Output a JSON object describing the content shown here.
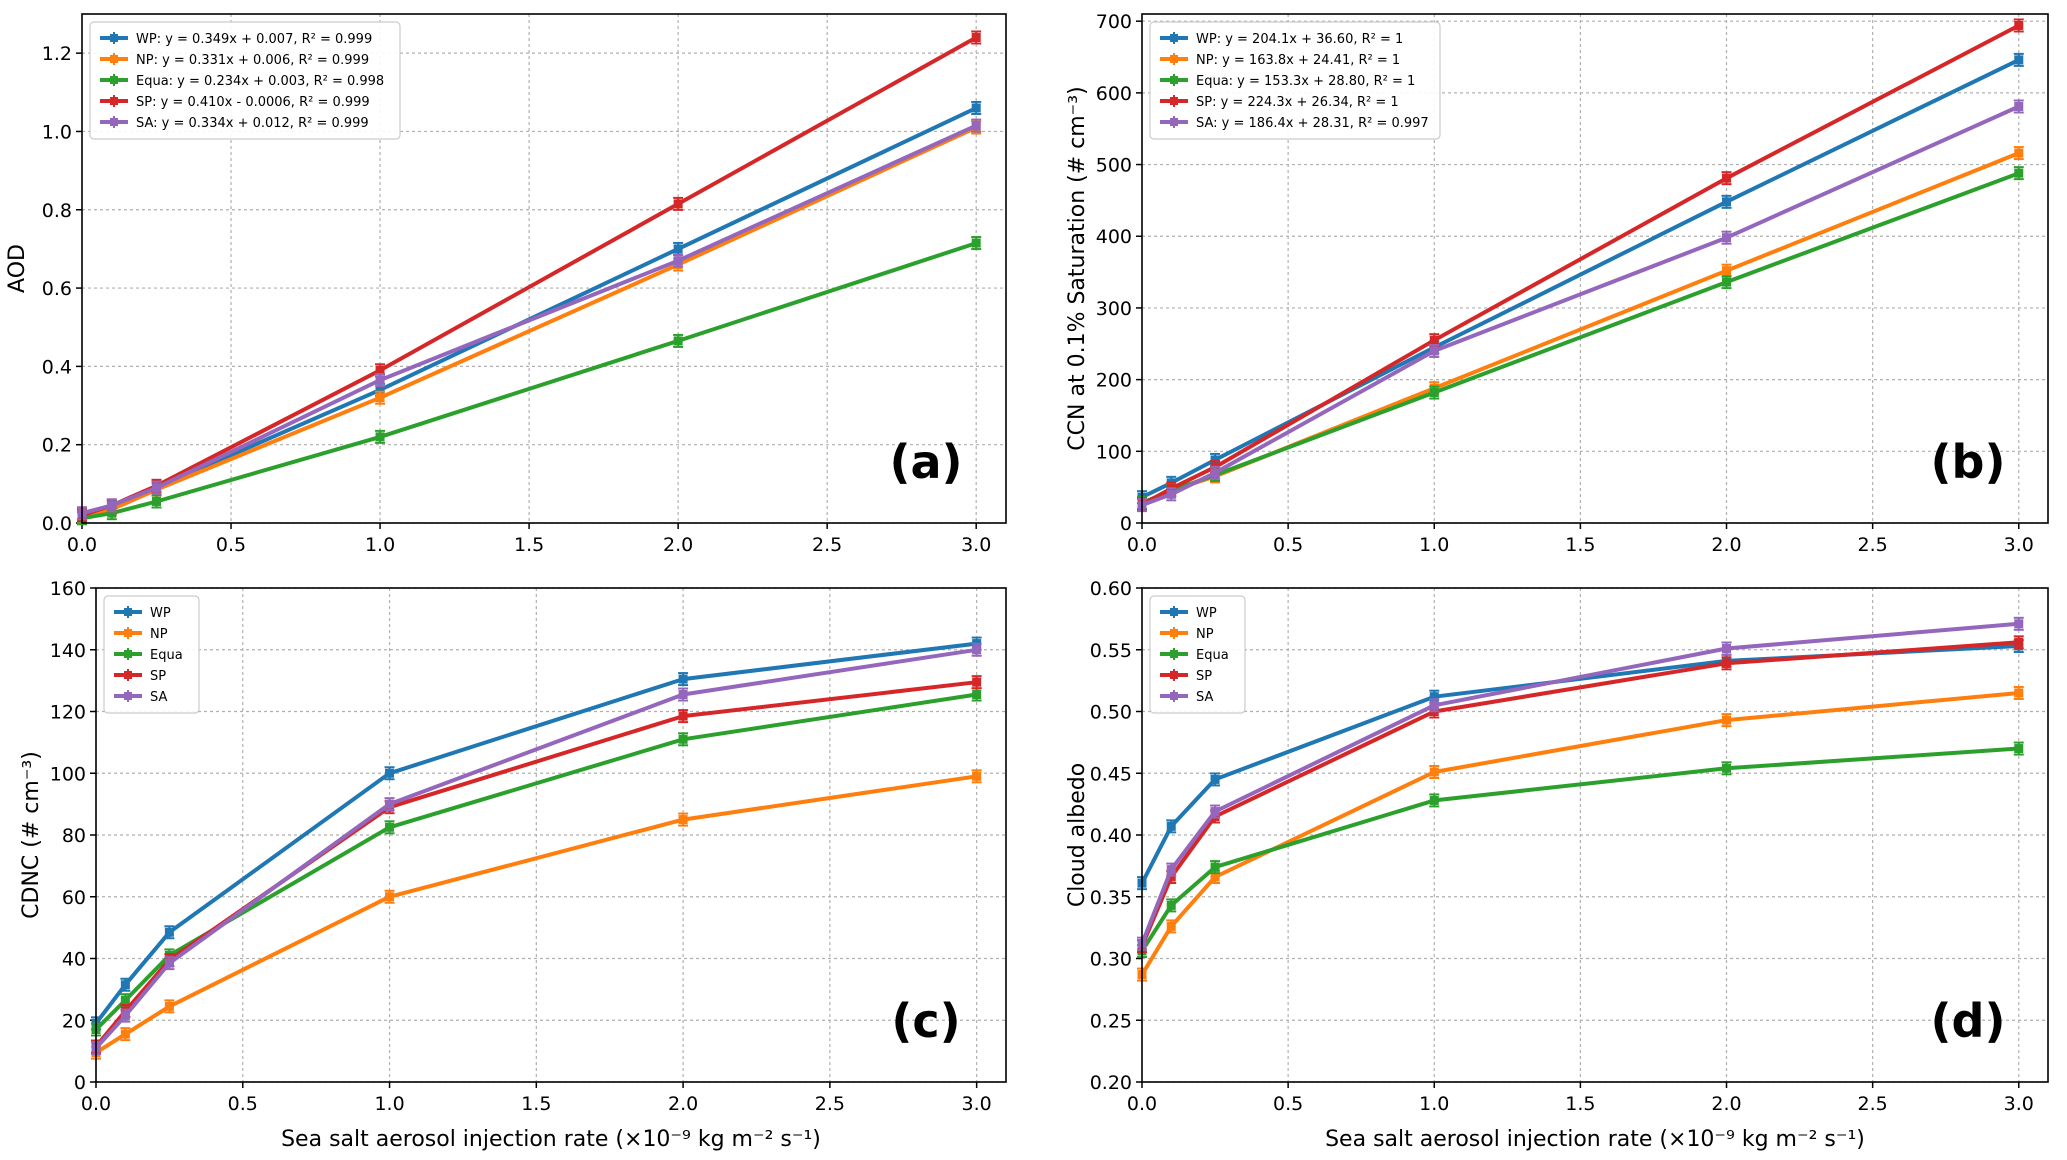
{
  "figure": {
    "shared_xlabel": "Sea salt aerosol injection rate (×10⁻⁹ kg m⁻² s⁻¹)",
    "colors": {
      "WP": "#1f77b4",
      "NP": "#ff7f0e",
      "Equa": "#2ca02c",
      "SP": "#d62728",
      "SA": "#9467bd",
      "grid": "#b0b0b0",
      "axis": "#000000"
    }
  },
  "chart_data": [
    {
      "type": "line",
      "panel_label": "(a)",
      "ylabel": "AOD",
      "xlabel": "",
      "x": [
        0,
        0.1,
        0.25,
        1.0,
        2.0,
        3.0
      ],
      "xlim": [
        0,
        3.1
      ],
      "ylim": [
        0,
        1.3
      ],
      "xticks": [
        0,
        0.5,
        1.0,
        1.5,
        2.0,
        2.5,
        3.0
      ],
      "xtick_labels": [
        "0.0",
        "0.5",
        "1.0",
        "1.5",
        "2.0",
        "2.5",
        "3.0"
      ],
      "yticks": [
        0,
        0.2,
        0.4,
        0.6,
        0.8,
        1.0,
        1.2
      ],
      "ytick_labels": [
        "0.0",
        "0.2",
        "0.4",
        "0.6",
        "0.8",
        "1.0",
        "1.2"
      ],
      "grid": true,
      "legend_placement": "upper-left",
      "series": [
        {
          "key": "WP",
          "name": "WP: y = 0.349x +  0.007, R² = 0.999",
          "values": [
            0.015,
            0.04,
            0.09,
            0.34,
            0.7,
            1.06
          ]
        },
        {
          "key": "NP",
          "name": "NP: y = 0.331x +  0.006, R² = 0.999",
          "values": [
            0.015,
            0.035,
            0.085,
            0.32,
            0.66,
            1.01
          ]
        },
        {
          "key": "Equa",
          "name": "Equa: y = 0.234x +  0.003, R² = 0.998",
          "values": [
            0.012,
            0.025,
            0.055,
            0.22,
            0.465,
            0.715
          ]
        },
        {
          "key": "SP",
          "name": "SP: y = 0.410x - 0.0006, R² = 0.999",
          "values": [
            0.02,
            0.045,
            0.095,
            0.39,
            0.815,
            1.24
          ]
        },
        {
          "key": "SA",
          "name": "SA: y = 0.334x +  0.012, R² = 0.999",
          "values": [
            0.025,
            0.045,
            0.09,
            0.365,
            0.67,
            1.015
          ]
        }
      ]
    },
    {
      "type": "line",
      "panel_label": "(b)",
      "ylabel": "CCN at 0.1% Saturation (# cm⁻³)",
      "xlabel": "",
      "x": [
        0,
        0.1,
        0.25,
        1.0,
        2.0,
        3.0
      ],
      "xlim": [
        0,
        3.1
      ],
      "ylim": [
        0,
        710
      ],
      "xticks": [
        0,
        0.5,
        1.0,
        1.5,
        2.0,
        2.5,
        3.0
      ],
      "xtick_labels": [
        "0.0",
        "0.5",
        "1.0",
        "1.5",
        "2.0",
        "2.5",
        "3.0"
      ],
      "yticks": [
        0,
        100,
        200,
        300,
        400,
        500,
        600,
        700
      ],
      "ytick_labels": [
        "0",
        "100",
        "200",
        "300",
        "400",
        "500",
        "600",
        "700"
      ],
      "grid": true,
      "legend_placement": "upper-left",
      "series": [
        {
          "key": "WP",
          "name": "WP: y = 204.1x +  36.60, R² = 1",
          "values": [
            36,
            56,
            88,
            245,
            448,
            646
          ]
        },
        {
          "key": "NP",
          "name": "NP: y = 163.8x +  24.41, R² = 1",
          "values": [
            25,
            45,
            65,
            188,
            352,
            516
          ]
        },
        {
          "key": "Equa",
          "name": "Equa: y = 153.3x +  28.80, R² = 1",
          "values": [
            28,
            45,
            67,
            182,
            336,
            488
          ]
        },
        {
          "key": "SP",
          "name": "SP: y = 224.3x +  26.34, R² = 1",
          "values": [
            26,
            48,
            78,
            255,
            481,
            694
          ]
        },
        {
          "key": "SA",
          "name": "SA: y = 186.4x +  28.31, R² = 0.997",
          "values": [
            25,
            40,
            70,
            240,
            398,
            581
          ]
        }
      ]
    },
    {
      "type": "line",
      "panel_label": "(c)",
      "ylabel": "CDNC (# cm⁻³)",
      "xlabel": "Sea salt aerosol injection rate (×10⁻⁹ kg m⁻² s⁻¹)",
      "x": [
        0,
        0.1,
        0.25,
        1.0,
        2.0,
        3.0
      ],
      "xlim": [
        0,
        3.1
      ],
      "ylim": [
        0,
        160
      ],
      "xticks": [
        0,
        0.5,
        1.0,
        1.5,
        2.0,
        2.5,
        3.0
      ],
      "xtick_labels": [
        "0.0",
        "0.5",
        "1.0",
        "1.5",
        "2.0",
        "2.5",
        "3.0"
      ],
      "yticks": [
        0,
        20,
        40,
        60,
        80,
        100,
        120,
        140,
        160
      ],
      "ytick_labels": [
        "0",
        "20",
        "40",
        "60",
        "80",
        "100",
        "120",
        "140",
        "160"
      ],
      "grid": true,
      "legend_placement": "upper-left",
      "series": [
        {
          "key": "WP",
          "name": "WP",
          "values": [
            19,
            31.5,
            48.5,
            100,
            130.5,
            142
          ]
        },
        {
          "key": "NP",
          "name": "NP",
          "values": [
            9.5,
            15.5,
            24.5,
            60,
            85,
            99
          ]
        },
        {
          "key": "Equa",
          "name": "Equa",
          "values": [
            17,
            26.5,
            41,
            82.5,
            111,
            125.5
          ]
        },
        {
          "key": "SP",
          "name": "SP",
          "values": [
            11.5,
            23,
            39.5,
            89,
            118.5,
            129.5
          ]
        },
        {
          "key": "SA",
          "name": "SA",
          "values": [
            11,
            21.5,
            38.5,
            90,
            125.5,
            140
          ]
        }
      ]
    },
    {
      "type": "line",
      "panel_label": "(d)",
      "ylabel": "Cloud albedo",
      "xlabel": "Sea salt aerosol injection rate (×10⁻⁹ kg m⁻² s⁻¹)",
      "x": [
        0,
        0.1,
        0.25,
        1.0,
        2.0,
        3.0
      ],
      "xlim": [
        0,
        3.1
      ],
      "ylim": [
        0.2,
        0.6
      ],
      "xticks": [
        0,
        0.5,
        1.0,
        1.5,
        2.0,
        2.5,
        3.0
      ],
      "xtick_labels": [
        "0.0",
        "0.5",
        "1.0",
        "1.5",
        "2.0",
        "2.5",
        "3.0"
      ],
      "yticks": [
        0.2,
        0.25,
        0.3,
        0.35,
        0.4,
        0.45,
        0.5,
        0.55,
        0.6
      ],
      "ytick_labels": [
        "0.20",
        "0.25",
        "0.30",
        "0.35",
        "0.40",
        "0.45",
        "0.50",
        "0.55",
        "0.60"
      ],
      "grid": true,
      "legend_placement": "upper-left",
      "series": [
        {
          "key": "WP",
          "name": "WP",
          "values": [
            0.361,
            0.407,
            0.445,
            0.512,
            0.541,
            0.553
          ]
        },
        {
          "key": "NP",
          "name": "NP",
          "values": [
            0.287,
            0.326,
            0.366,
            0.451,
            0.493,
            0.515
          ]
        },
        {
          "key": "Equa",
          "name": "Equa",
          "values": [
            0.306,
            0.343,
            0.374,
            0.428,
            0.454,
            0.47
          ]
        },
        {
          "key": "SP",
          "name": "SP",
          "values": [
            0.31,
            0.366,
            0.415,
            0.5,
            0.539,
            0.556
          ]
        },
        {
          "key": "SA",
          "name": "SA",
          "values": [
            0.312,
            0.372,
            0.419,
            0.505,
            0.551,
            0.571
          ]
        }
      ]
    }
  ]
}
